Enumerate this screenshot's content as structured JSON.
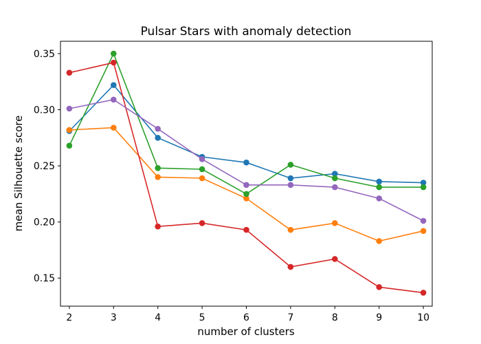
{
  "chart_data": {
    "type": "line",
    "title": "Pulsar Stars with anomaly detection",
    "xlabel": "number of clusters",
    "ylabel": "mean Silhouette score",
    "x": [
      2,
      3,
      4,
      5,
      6,
      7,
      8,
      9,
      10
    ],
    "xlim": [
      1.8,
      10.2
    ],
    "ylim": [
      0.125,
      0.361
    ],
    "yticks": [
      "0.15",
      "0.20",
      "0.25",
      "0.30",
      "0.35"
    ],
    "xticks": [
      "2",
      "3",
      "4",
      "5",
      "6",
      "7",
      "8",
      "9",
      "10"
    ],
    "grid": false,
    "legend": "none",
    "series": [
      {
        "color": "#1f77b4",
        "values": [
          0.281,
          0.322,
          0.275,
          0.258,
          0.253,
          0.239,
          0.243,
          0.236,
          0.235
        ]
      },
      {
        "color": "#ff7f0e",
        "values": [
          0.282,
          0.284,
          0.24,
          0.239,
          0.221,
          0.193,
          0.199,
          0.183,
          0.192
        ]
      },
      {
        "color": "#2ca02c",
        "values": [
          0.268,
          0.35,
          0.248,
          0.247,
          0.225,
          0.251,
          0.239,
          0.231,
          0.231
        ]
      },
      {
        "color": "#d62728",
        "values": [
          0.333,
          0.342,
          0.196,
          0.199,
          0.193,
          0.16,
          0.167,
          0.142,
          0.137
        ]
      },
      {
        "color": "#9467bd",
        "values": [
          0.301,
          0.309,
          0.283,
          0.256,
          0.233,
          0.233,
          0.231,
          0.221,
          0.201
        ]
      }
    ]
  }
}
